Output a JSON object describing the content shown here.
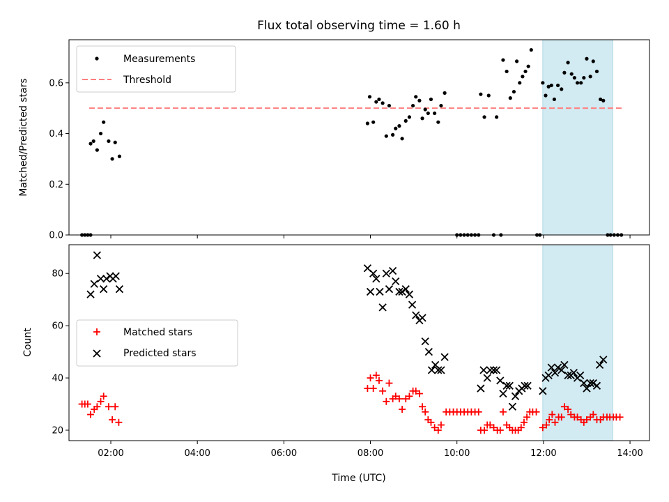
{
  "chart_data": [
    {
      "type": "scatter",
      "title": "Flux total observing time = 1.60 h",
      "xlabel": "",
      "ylabel": "Matched/Predicted stars",
      "xlim": [
        "01:02",
        "14:27"
      ],
      "ylim": [
        0,
        0.77
      ],
      "xticks": [
        "02:00",
        "04:00",
        "06:00",
        "08:00",
        "10:00",
        "12:00",
        "14:00"
      ],
      "yticks": [
        "0.0",
        "0.2",
        "0.4",
        "0.6"
      ],
      "legend_position": "upper-left",
      "shaded_interval": {
        "x_start": "11:59",
        "x_end": "13:36",
        "color": "#add8e6"
      },
      "threshold": {
        "name": "Threshold",
        "y": 0.5,
        "x_start": "01:30",
        "x_end": "13:50",
        "color": "#ff7f7f"
      },
      "series": [
        {
          "name": "Measurements",
          "marker": "dot",
          "color": "#000000",
          "points": [
            [
              "01:20",
              0
            ],
            [
              "01:24",
              0
            ],
            [
              "01:28",
              0
            ],
            [
              "01:32",
              0
            ],
            [
              "01:32",
              0.36
            ],
            [
              "01:36",
              0.37
            ],
            [
              "01:41",
              0.335
            ],
            [
              "01:46",
              0.4
            ],
            [
              "01:50",
              0.445
            ],
            [
              "01:57",
              0.37
            ],
            [
              "02:02",
              0.3
            ],
            [
              "02:06",
              0.365
            ],
            [
              "02:12",
              0.31
            ],
            [
              "07:56",
              0.44
            ],
            [
              "07:59",
              0.545
            ],
            [
              "08:04",
              0.445
            ],
            [
              "08:08",
              0.525
            ],
            [
              "08:12",
              0.535
            ],
            [
              "08:17",
              0.52
            ],
            [
              "08:22",
              0.39
            ],
            [
              "08:26",
              0.51
            ],
            [
              "08:31",
              0.395
            ],
            [
              "08:35",
              0.42
            ],
            [
              "08:40",
              0.43
            ],
            [
              "08:44",
              0.38
            ],
            [
              "08:49",
              0.45
            ],
            [
              "08:54",
              0.465
            ],
            [
              "08:59",
              0.51
            ],
            [
              "09:03",
              0.545
            ],
            [
              "09:08",
              0.53
            ],
            [
              "09:12",
              0.46
            ],
            [
              "09:16",
              0.495
            ],
            [
              "09:20",
              0.48
            ],
            [
              "09:24",
              0.535
            ],
            [
              "09:29",
              0.48
            ],
            [
              "09:34",
              0.445
            ],
            [
              "09:38",
              0.51
            ],
            [
              "09:43",
              0.56
            ],
            [
              "10:00",
              0
            ],
            [
              "10:05",
              0
            ],
            [
              "10:10",
              0
            ],
            [
              "10:15",
              0
            ],
            [
              "10:20",
              0
            ],
            [
              "10:25",
              0
            ],
            [
              "10:30",
              0
            ],
            [
              "10:33",
              0.555
            ],
            [
              "10:38",
              0.465
            ],
            [
              "10:44",
              0.55
            ],
            [
              "10:51",
              0.0
            ],
            [
              "10:55",
              0.465
            ],
            [
              "11:01",
              0.0
            ],
            [
              "11:04",
              0.69
            ],
            [
              "11:09",
              0.645
            ],
            [
              "11:14",
              0.54
            ],
            [
              "11:19",
              0.565
            ],
            [
              "11:23",
              0.685
            ],
            [
              "11:27",
              0.6
            ],
            [
              "11:31",
              0.625
            ],
            [
              "11:35",
              0.645
            ],
            [
              "11:39",
              0.665
            ],
            [
              "11:43",
              0.73
            ],
            [
              "11:51",
              0
            ],
            [
              "11:55",
              0
            ],
            [
              "11:59",
              0.6
            ],
            [
              "12:03",
              0.55
            ],
            [
              "12:07",
              0.585
            ],
            [
              "12:11",
              0.59
            ],
            [
              "12:15",
              0.535
            ],
            [
              "12:20",
              0.59
            ],
            [
              "12:25",
              0.575
            ],
            [
              "12:29",
              0.64
            ],
            [
              "12:34",
              0.68
            ],
            [
              "12:39",
              0.635
            ],
            [
              "12:43",
              0.62
            ],
            [
              "12:47",
              0.6
            ],
            [
              "12:52",
              0.6
            ],
            [
              "12:56",
              0.62
            ],
            [
              "13:00",
              0.695
            ],
            [
              "13:05",
              0.625
            ],
            [
              "13:09",
              0.685
            ],
            [
              "13:14",
              0.645
            ],
            [
              "13:19",
              0.535
            ],
            [
              "13:23",
              0.53
            ],
            [
              "13:29",
              0
            ],
            [
              "13:33",
              0
            ],
            [
              "13:38",
              0
            ],
            [
              "13:43",
              0
            ],
            [
              "13:48",
              0
            ]
          ]
        }
      ]
    },
    {
      "type": "scatter",
      "title": "",
      "xlabel": "Time (UTC)",
      "ylabel": "Count",
      "xlim": [
        "01:02",
        "14:27"
      ],
      "ylim": [
        16,
        91
      ],
      "xticks": [
        "02:00",
        "04:00",
        "06:00",
        "08:00",
        "10:00",
        "12:00",
        "14:00"
      ],
      "yticks": [
        "20",
        "40",
        "60",
        "80"
      ],
      "legend_position": "center-left",
      "shaded_interval": {
        "x_start": "11:59",
        "x_end": "13:36",
        "color": "#add8e6"
      },
      "series": [
        {
          "name": "Matched stars",
          "marker": "plus",
          "color": "#ff0000",
          "points": [
            [
              "01:20",
              30
            ],
            [
              "01:24",
              30
            ],
            [
              "01:28",
              30
            ],
            [
              "01:32",
              26
            ],
            [
              "01:37",
              28
            ],
            [
              "01:41",
              29
            ],
            [
              "01:46",
              31
            ],
            [
              "01:50",
              33
            ],
            [
              "01:57",
              29
            ],
            [
              "02:02",
              24
            ],
            [
              "02:06",
              29
            ],
            [
              "02:11",
              23
            ],
            [
              "07:56",
              36
            ],
            [
              "08:00",
              40
            ],
            [
              "08:04",
              36
            ],
            [
              "08:08",
              41
            ],
            [
              "08:12",
              39
            ],
            [
              "08:17",
              35
            ],
            [
              "08:22",
              31
            ],
            [
              "08:26",
              38
            ],
            [
              "08:31",
              32
            ],
            [
              "08:35",
              33
            ],
            [
              "08:40",
              32
            ],
            [
              "08:44",
              28
            ],
            [
              "08:49",
              32
            ],
            [
              "08:54",
              33
            ],
            [
              "08:59",
              35
            ],
            [
              "09:03",
              35
            ],
            [
              "09:08",
              34
            ],
            [
              "09:12",
              29
            ],
            [
              "09:16",
              27
            ],
            [
              "09:20",
              24
            ],
            [
              "09:24",
              23
            ],
            [
              "09:29",
              21
            ],
            [
              "09:34",
              20
            ],
            [
              "09:38",
              22
            ],
            [
              "09:45",
              27
            ],
            [
              "09:50",
              27
            ],
            [
              "09:55",
              27
            ],
            [
              "10:00",
              27
            ],
            [
              "10:05",
              27
            ],
            [
              "10:10",
              27
            ],
            [
              "10:15",
              27
            ],
            [
              "10:20",
              27
            ],
            [
              "10:25",
              27
            ],
            [
              "10:30",
              27
            ],
            [
              "10:33",
              20
            ],
            [
              "10:38",
              20
            ],
            [
              "10:42",
              22
            ],
            [
              "10:46",
              22
            ],
            [
              "10:51",
              21
            ],
            [
              "10:56",
              20
            ],
            [
              "11:00",
              20
            ],
            [
              "11:04",
              27
            ],
            [
              "11:09",
              22
            ],
            [
              "11:13",
              21
            ],
            [
              "11:17",
              20
            ],
            [
              "11:21",
              20
            ],
            [
              "11:25",
              20
            ],
            [
              "11:29",
              21
            ],
            [
              "11:33",
              23
            ],
            [
              "11:37",
              25
            ],
            [
              "11:41",
              27
            ],
            [
              "11:45",
              27
            ],
            [
              "11:50",
              27
            ],
            [
              "11:59",
              21
            ],
            [
              "12:04",
              22
            ],
            [
              "12:08",
              24
            ],
            [
              "12:12",
              26
            ],
            [
              "12:16",
              23
            ],
            [
              "12:21",
              25
            ],
            [
              "12:25",
              25
            ],
            [
              "12:29",
              29
            ],
            [
              "12:34",
              28
            ],
            [
              "12:38",
              26
            ],
            [
              "12:43",
              25
            ],
            [
              "12:47",
              25
            ],
            [
              "12:52",
              24
            ],
            [
              "12:56",
              23
            ],
            [
              "13:00",
              24
            ],
            [
              "13:05",
              25
            ],
            [
              "13:09",
              26
            ],
            [
              "13:14",
              24
            ],
            [
              "13:19",
              24
            ],
            [
              "13:23",
              25
            ],
            [
              "13:28",
              25
            ],
            [
              "13:32",
              25
            ],
            [
              "13:37",
              25
            ],
            [
              "13:41",
              25
            ],
            [
              "13:46",
              25
            ]
          ]
        },
        {
          "name": "Predicted stars",
          "marker": "x",
          "color": "#000000",
          "points": [
            [
              "01:32",
              72
            ],
            [
              "01:37",
              76
            ],
            [
              "01:41",
              87
            ],
            [
              "01:46",
              78
            ],
            [
              "01:50",
              74
            ],
            [
              "01:54",
              78
            ],
            [
              "01:59",
              79
            ],
            [
              "02:03",
              78
            ],
            [
              "02:07",
              79
            ],
            [
              "02:12",
              74
            ],
            [
              "07:56",
              82
            ],
            [
              "08:00",
              73
            ],
            [
              "08:04",
              80
            ],
            [
              "08:08",
              78
            ],
            [
              "08:13",
              73
            ],
            [
              "08:17",
              67
            ],
            [
              "08:22",
              80
            ],
            [
              "08:26",
              74
            ],
            [
              "08:31",
              81
            ],
            [
              "08:35",
              77
            ],
            [
              "08:40",
              73
            ],
            [
              "08:44",
              73
            ],
            [
              "08:49",
              74
            ],
            [
              "08:54",
              72
            ],
            [
              "08:58",
              68
            ],
            [
              "09:03",
              64
            ],
            [
              "09:08",
              62
            ],
            [
              "09:12",
              63
            ],
            [
              "09:16",
              54
            ],
            [
              "09:21",
              50
            ],
            [
              "09:25",
              43
            ],
            [
              "09:30",
              45
            ],
            [
              "09:34",
              43
            ],
            [
              "09:38",
              43
            ],
            [
              "09:43",
              48
            ],
            [
              "10:33",
              36
            ],
            [
              "10:37",
              43
            ],
            [
              "10:42",
              40
            ],
            [
              "10:46",
              43
            ],
            [
              "10:51",
              43
            ],
            [
              "10:55",
              43
            ],
            [
              "11:00",
              39
            ],
            [
              "11:04",
              34
            ],
            [
              "11:09",
              37
            ],
            [
              "11:13",
              37
            ],
            [
              "11:17",
              29
            ],
            [
              "11:21",
              33
            ],
            [
              "11:26",
              35
            ],
            [
              "11:30",
              36
            ],
            [
              "11:34",
              37
            ],
            [
              "11:38",
              37
            ],
            [
              "11:59",
              35
            ],
            [
              "12:03",
              40
            ],
            [
              "12:07",
              41
            ],
            [
              "12:11",
              44
            ],
            [
              "12:16",
              42
            ],
            [
              "12:20",
              44
            ],
            [
              "12:25",
              43
            ],
            [
              "12:29",
              45
            ],
            [
              "12:34",
              41
            ],
            [
              "12:38",
              41
            ],
            [
              "12:42",
              42
            ],
            [
              "12:47",
              40
            ],
            [
              "12:51",
              41
            ],
            [
              "12:56",
              38
            ],
            [
              "13:00",
              36
            ],
            [
              "13:05",
              38
            ],
            [
              "13:09",
              38
            ],
            [
              "13:14",
              37
            ],
            [
              "13:18",
              45
            ],
            [
              "13:23",
              47
            ]
          ]
        }
      ]
    }
  ]
}
